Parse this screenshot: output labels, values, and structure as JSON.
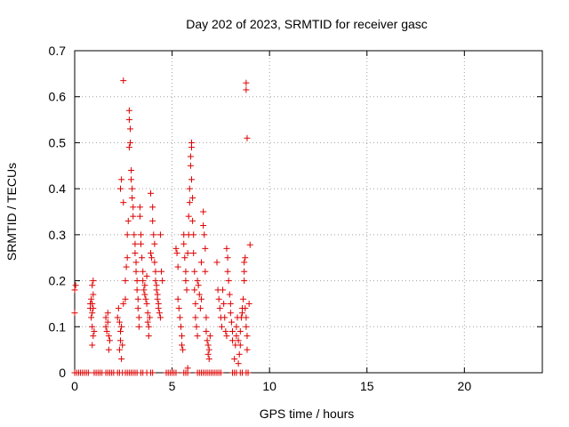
{
  "chart_data": {
    "type": "scatter",
    "title": "Day 202 of 2023, SRMTID for receiver gasc",
    "xlabel": "GPS time / hours",
    "ylabel": "SRMTID / TECUs",
    "xlim": [
      0,
      24
    ],
    "ylim": [
      0,
      0.7
    ],
    "grid": true,
    "marker": "+",
    "color": "#dd0000",
    "x_ticks": [
      0,
      5,
      10,
      15,
      20
    ],
    "x_tick_labels": [
      "0",
      "5",
      "10",
      "15",
      "20"
    ],
    "y_ticks": [
      0,
      0.1,
      0.2,
      0.3,
      0.4,
      0.5,
      0.6,
      0.7
    ],
    "y_tick_labels": [
      "0",
      "0.1",
      "0.2",
      "0.3",
      "0.4",
      "0.5",
      "0.6",
      "0.7"
    ],
    "series": [
      {
        "name": "SRMTID",
        "points": [
          [
            0.0,
            0.18
          ],
          [
            0.0,
            0.13
          ],
          [
            0.05,
            0.19
          ],
          [
            0.0,
            0.0
          ],
          [
            0.1,
            0.0
          ],
          [
            0.2,
            0.0
          ],
          [
            0.3,
            0.0
          ],
          [
            0.4,
            0.0
          ],
          [
            0.5,
            0.0
          ],
          [
            0.6,
            0.0
          ],
          [
            0.7,
            0.0
          ],
          [
            0.8,
            0.14
          ],
          [
            0.8,
            0.15
          ],
          [
            0.85,
            0.16
          ],
          [
            0.9,
            0.13
          ],
          [
            0.9,
            0.1
          ],
          [
            0.85,
            0.12
          ],
          [
            0.95,
            0.17
          ],
          [
            0.9,
            0.19
          ],
          [
            0.95,
            0.2
          ],
          [
            0.9,
            0.06
          ],
          [
            0.95,
            0.08
          ],
          [
            1.0,
            0.09
          ],
          [
            0.9,
            0.15
          ],
          [
            0.95,
            0.14
          ],
          [
            1.0,
            0.0
          ],
          [
            1.1,
            0.0
          ],
          [
            1.2,
            0.0
          ],
          [
            1.3,
            0.0
          ],
          [
            1.4,
            0.0
          ],
          [
            1.6,
            0.1
          ],
          [
            1.6,
            0.12
          ],
          [
            1.65,
            0.09
          ],
          [
            1.7,
            0.11
          ],
          [
            1.7,
            0.13
          ],
          [
            1.75,
            0.08
          ],
          [
            1.75,
            0.05
          ],
          [
            1.8,
            0.07
          ],
          [
            1.6,
            0.0
          ],
          [
            1.7,
            0.0
          ],
          [
            1.8,
            0.0
          ],
          [
            1.9,
            0.0
          ],
          [
            2.0,
            0.0
          ],
          [
            2.2,
            0.12
          ],
          [
            2.25,
            0.14
          ],
          [
            2.3,
            0.11
          ],
          [
            2.35,
            0.09
          ],
          [
            2.3,
            0.05
          ],
          [
            2.35,
            0.07
          ],
          [
            2.4,
            0.03
          ],
          [
            2.45,
            0.06
          ],
          [
            2.4,
            0.1
          ],
          [
            2.5,
            0.15
          ],
          [
            2.35,
            0.4
          ],
          [
            2.4,
            0.42
          ],
          [
            2.5,
            0.37
          ],
          [
            2.2,
            0.0
          ],
          [
            2.3,
            0.0
          ],
          [
            2.45,
            0.0
          ],
          [
            2.5,
            0.635
          ],
          [
            2.6,
            0.16
          ],
          [
            2.6,
            0.2
          ],
          [
            2.65,
            0.23
          ],
          [
            2.7,
            0.25
          ],
          [
            2.7,
            0.3
          ],
          [
            2.75,
            0.33
          ],
          [
            2.8,
            0.57
          ],
          [
            2.8,
            0.55
          ],
          [
            2.85,
            0.53
          ],
          [
            2.85,
            0.5
          ],
          [
            2.8,
            0.49
          ],
          [
            2.9,
            0.44
          ],
          [
            2.9,
            0.42
          ],
          [
            2.95,
            0.4
          ],
          [
            2.95,
            0.38
          ],
          [
            3.0,
            0.36
          ],
          [
            3.0,
            0.34
          ],
          [
            3.05,
            0.3
          ],
          [
            3.1,
            0.28
          ],
          [
            3.1,
            0.26
          ],
          [
            3.15,
            0.24
          ],
          [
            3.15,
            0.22
          ],
          [
            3.2,
            0.2
          ],
          [
            3.2,
            0.18
          ],
          [
            3.25,
            0.16
          ],
          [
            3.25,
            0.14
          ],
          [
            3.3,
            0.12
          ],
          [
            3.3,
            0.1
          ],
          [
            3.35,
            0.36
          ],
          [
            3.35,
            0.34
          ],
          [
            3.4,
            0.3
          ],
          [
            3.4,
            0.28
          ],
          [
            3.45,
            0.25
          ],
          [
            3.5,
            0.22
          ],
          [
            3.5,
            0.2
          ],
          [
            3.55,
            0.18
          ],
          [
            3.6,
            0.17
          ],
          [
            3.6,
            0.19
          ],
          [
            3.65,
            0.16
          ],
          [
            3.7,
            0.15
          ],
          [
            3.7,
            0.21
          ],
          [
            3.75,
            0.13
          ],
          [
            3.75,
            0.11
          ],
          [
            3.8,
            0.08
          ],
          [
            3.8,
            0.1
          ],
          [
            3.85,
            0.12
          ],
          [
            3.9,
            0.39
          ],
          [
            3.9,
            0.26
          ],
          [
            3.95,
            0.25
          ],
          [
            4.0,
            0.36
          ],
          [
            4.0,
            0.33
          ],
          [
            4.05,
            0.3
          ],
          [
            4.1,
            0.28
          ],
          [
            4.1,
            0.24
          ],
          [
            4.15,
            0.22
          ],
          [
            4.15,
            0.2
          ],
          [
            4.2,
            0.19
          ],
          [
            4.2,
            0.18
          ],
          [
            4.25,
            0.17
          ],
          [
            4.25,
            0.16
          ],
          [
            4.3,
            0.15
          ],
          [
            4.3,
            0.14
          ],
          [
            4.35,
            0.13
          ],
          [
            4.4,
            0.12
          ],
          [
            4.4,
            0.3
          ],
          [
            4.45,
            0.22
          ],
          [
            4.5,
            0.2
          ],
          [
            2.6,
            0.0
          ],
          [
            2.7,
            0.0
          ],
          [
            2.8,
            0.0
          ],
          [
            2.9,
            0.0
          ],
          [
            3.0,
            0.0
          ],
          [
            3.1,
            0.0
          ],
          [
            3.2,
            0.0
          ],
          [
            3.4,
            0.0
          ],
          [
            3.5,
            0.0
          ],
          [
            3.7,
            0.0
          ],
          [
            3.9,
            0.0
          ],
          [
            4.0,
            0.0
          ],
          [
            4.7,
            0.0
          ],
          [
            4.8,
            0.0
          ],
          [
            4.9,
            0.0
          ],
          [
            5.0,
            0.0
          ],
          [
            5.1,
            0.0
          ],
          [
            5.2,
            0.0
          ],
          [
            5.2,
            0.27
          ],
          [
            5.25,
            0.26
          ],
          [
            5.3,
            0.23
          ],
          [
            5.3,
            0.16
          ],
          [
            5.35,
            0.14
          ],
          [
            5.4,
            0.12
          ],
          [
            5.45,
            0.1
          ],
          [
            5.5,
            0.08
          ],
          [
            5.5,
            0.06
          ],
          [
            5.55,
            0.05
          ],
          [
            5.6,
            0.28
          ],
          [
            5.6,
            0.3
          ],
          [
            5.65,
            0.25
          ],
          [
            5.7,
            0.22
          ],
          [
            5.7,
            0.2
          ],
          [
            5.75,
            0.18
          ],
          [
            5.8,
            0.01
          ],
          [
            5.8,
            0.26
          ],
          [
            5.85,
            0.3
          ],
          [
            5.85,
            0.34
          ],
          [
            5.9,
            0.37
          ],
          [
            5.9,
            0.4
          ],
          [
            5.95,
            0.45
          ],
          [
            5.95,
            0.47
          ],
          [
            6.0,
            0.5
          ],
          [
            6.0,
            0.49
          ],
          [
            6.0,
            0.42
          ],
          [
            6.05,
            0.38
          ],
          [
            6.05,
            0.33
          ],
          [
            6.1,
            0.3
          ],
          [
            6.1,
            0.26
          ],
          [
            6.15,
            0.22
          ],
          [
            6.15,
            0.18
          ],
          [
            6.2,
            0.15
          ],
          [
            6.2,
            0.12
          ],
          [
            6.25,
            0.1
          ],
          [
            6.3,
            0.08
          ],
          [
            6.3,
            0.2
          ],
          [
            6.35,
            0.19
          ],
          [
            6.4,
            0.17
          ],
          [
            6.45,
            0.14
          ],
          [
            6.5,
            0.16
          ],
          [
            6.5,
            0.24
          ],
          [
            6.6,
            0.32
          ],
          [
            6.6,
            0.35
          ],
          [
            6.65,
            0.3
          ],
          [
            6.7,
            0.27
          ],
          [
            6.7,
            0.22
          ],
          [
            6.75,
            0.12
          ],
          [
            6.75,
            0.09
          ],
          [
            6.8,
            0.07
          ],
          [
            6.85,
            0.06
          ],
          [
            6.85,
            0.04
          ],
          [
            6.9,
            0.03
          ],
          [
            6.9,
            0.05
          ],
          [
            6.95,
            0.08
          ],
          [
            5.6,
            0.0
          ],
          [
            5.7,
            0.0
          ],
          [
            5.8,
            0.0
          ],
          [
            6.3,
            0.0
          ],
          [
            6.4,
            0.0
          ],
          [
            6.5,
            0.0
          ],
          [
            6.6,
            0.0
          ],
          [
            6.7,
            0.0
          ],
          [
            6.8,
            0.0
          ],
          [
            6.9,
            0.0
          ],
          [
            7.0,
            0.0
          ],
          [
            7.1,
            0.0
          ],
          [
            7.2,
            0.0
          ],
          [
            7.3,
            0.0
          ],
          [
            7.4,
            0.0
          ],
          [
            7.5,
            0.0
          ],
          [
            7.3,
            0.24
          ],
          [
            7.35,
            0.18
          ],
          [
            7.4,
            0.16
          ],
          [
            7.45,
            0.14
          ],
          [
            7.5,
            0.12
          ],
          [
            7.55,
            0.1
          ],
          [
            7.6,
            0.18
          ],
          [
            7.65,
            0.15
          ],
          [
            7.7,
            0.12
          ],
          [
            7.75,
            0.09
          ],
          [
            7.8,
            0.08
          ],
          [
            7.8,
            0.27
          ],
          [
            7.85,
            0.25
          ],
          [
            7.85,
            0.22
          ],
          [
            7.9,
            0.2
          ],
          [
            7.95,
            0.17
          ],
          [
            8.0,
            0.15
          ],
          [
            8.0,
            0.13
          ],
          [
            8.05,
            0.11
          ],
          [
            8.1,
            0.09
          ],
          [
            8.1,
            0.07
          ],
          [
            8.2,
            0.03
          ],
          [
            8.25,
            0.06
          ],
          [
            8.3,
            0.08
          ],
          [
            8.3,
            0.1
          ],
          [
            8.35,
            0.12
          ],
          [
            8.4,
            0.07
          ],
          [
            8.4,
            0.02
          ],
          [
            8.45,
            0.04
          ],
          [
            8.5,
            0.06
          ],
          [
            8.5,
            0.09
          ],
          [
            8.55,
            0.12
          ],
          [
            8.6,
            0.14
          ],
          [
            8.6,
            0.13
          ],
          [
            8.65,
            0.16
          ],
          [
            8.7,
            0.2
          ],
          [
            8.7,
            0.24
          ],
          [
            8.75,
            0.25
          ],
          [
            8.7,
            0.22
          ],
          [
            8.75,
            0.14
          ],
          [
            8.8,
            0.12
          ],
          [
            8.8,
            0.1
          ],
          [
            8.85,
            0.08
          ],
          [
            8.85,
            0.05
          ],
          [
            8.8,
            0.63
          ],
          [
            8.8,
            0.615
          ],
          [
            8.85,
            0.51
          ],
          [
            9.0,
            0.278
          ],
          [
            8.95,
            0.15
          ],
          [
            8.1,
            0.0
          ],
          [
            8.2,
            0.0
          ],
          [
            8.3,
            0.0
          ],
          [
            8.5,
            0.0
          ],
          [
            8.6,
            0.0
          ],
          [
            8.8,
            0.0
          ],
          [
            8.9,
            0.0
          ]
        ]
      }
    ]
  }
}
